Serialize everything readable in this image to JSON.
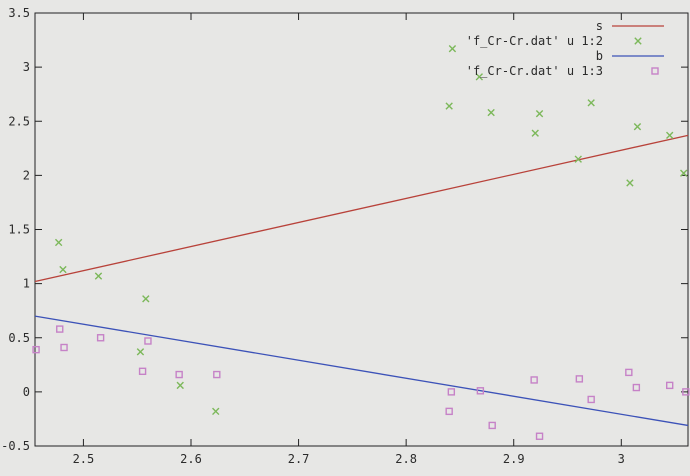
{
  "chart_data": {
    "type": "scatter",
    "title": "",
    "xlabel": "",
    "ylabel": "",
    "xlim": [
      2.455,
      3.062
    ],
    "ylim": [
      -0.5,
      3.5
    ],
    "x_ticks": [
      "2.5",
      "2.6",
      "2.7",
      "2.8",
      "2.9",
      "3"
    ],
    "x_tick_values": [
      2.5,
      2.6,
      2.7,
      2.8,
      2.9,
      3.0
    ],
    "y_ticks": [
      "-0.5",
      "0",
      "0.5",
      "1",
      "1.5",
      "2",
      "2.5",
      "3",
      "3.5"
    ],
    "y_tick_values": [
      -0.5,
      0,
      0.5,
      1,
      1.5,
      2,
      2.5,
      3,
      3.5
    ],
    "grid": false,
    "legend_position": "top-right",
    "series": [
      {
        "name": "s",
        "kind": "line",
        "color": "#b8423a",
        "x": [
          2.455,
          3.062
        ],
        "y": [
          1.02,
          2.37
        ]
      },
      {
        "name": "'f_Cr-Cr.dat' u 1:2",
        "kind": "points",
        "marker": "x",
        "color": "#7cb85a",
        "x": [
          2.477,
          2.481,
          2.514,
          2.553,
          2.558,
          2.59,
          2.623,
          2.84,
          2.843,
          2.868,
          2.879,
          2.92,
          2.924,
          2.96,
          2.972,
          3.008,
          3.015,
          3.045,
          3.058
        ],
        "y": [
          1.38,
          1.13,
          1.07,
          0.37,
          0.86,
          0.06,
          -0.18,
          2.64,
          3.17,
          2.91,
          2.58,
          2.39,
          2.57,
          2.15,
          2.67,
          1.93,
          2.45,
          2.37,
          2.02
        ]
      },
      {
        "name": "b",
        "kind": "line",
        "color": "#3c52b8",
        "x": [
          2.455,
          3.062
        ],
        "y": [
          0.7,
          -0.31
        ]
      },
      {
        "name": "'f_Cr-Cr.dat' u 1:3",
        "kind": "points",
        "marker": "square",
        "color": "#c682c7",
        "x": [
          2.456,
          2.478,
          2.482,
          2.516,
          2.555,
          2.56,
          2.589,
          2.624,
          2.84,
          2.842,
          2.869,
          2.88,
          2.919,
          2.924,
          2.961,
          2.972,
          3.007,
          3.014,
          3.045,
          3.06
        ],
        "y": [
          0.39,
          0.58,
          0.41,
          0.5,
          0.19,
          0.47,
          0.16,
          0.16,
          -0.18,
          0.0,
          0.01,
          -0.31,
          0.11,
          -0.41,
          0.12,
          -0.07,
          0.18,
          0.04,
          0.06,
          0.0
        ]
      }
    ]
  }
}
